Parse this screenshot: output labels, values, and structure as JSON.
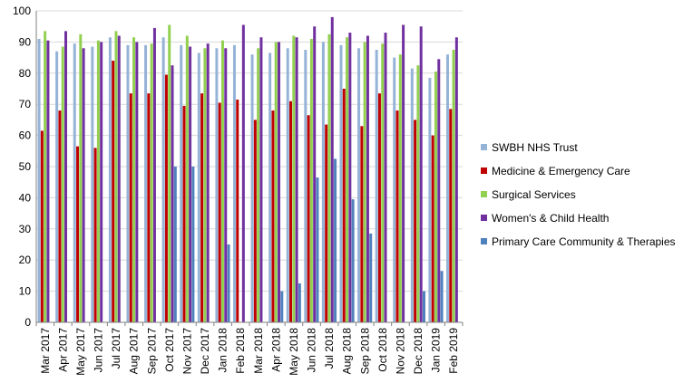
{
  "chart_data": {
    "type": "bar",
    "categories": [
      "Mar 2017",
      "Apr 2017",
      "May 2017",
      "Jun 2017",
      "Jul 2017",
      "Aug 2017",
      "Sep 2017",
      "Oct 2017",
      "Nov 2017",
      "Dec 2017",
      "Jan 2018",
      "Feb 2018",
      "Mar 2018",
      "Apr 2018",
      "May 2018",
      "Jun 2018",
      "Jul 2018",
      "Aug 2018",
      "Sep 2018",
      "Oct 2018",
      "Nov 2018",
      "Dec 2018",
      "Jan 2019",
      "Feb 2019"
    ],
    "ylim": [
      0,
      100
    ],
    "yticks": [
      0,
      10,
      20,
      30,
      40,
      50,
      60,
      70,
      80,
      90,
      100
    ],
    "grid": true,
    "legend_position": "right",
    "series": [
      {
        "name": "SWBH NHS Trust",
        "color": "#95b3d7",
        "values": [
          91,
          87,
          89.5,
          88.5,
          91.5,
          89,
          89,
          91.5,
          89,
          86.5,
          88,
          89,
          86,
          86.5,
          88,
          87.5,
          90,
          89,
          88,
          87.5,
          85,
          81.5,
          78.5,
          86
        ]
      },
      {
        "name": "Medicine & Emergency Care",
        "color": "#c00000",
        "values": [
          61.5,
          68,
          56.5,
          56,
          84,
          73.5,
          73.5,
          79.5,
          69.5,
          73.5,
          70.5,
          71.5,
          65,
          68,
          71,
          66.5,
          63.5,
          75,
          63,
          73.5,
          68,
          65,
          60,
          68.5
        ]
      },
      {
        "name": "Surgical Services",
        "color": "#92d050",
        "values": [
          93.5,
          88.5,
          92.5,
          90.5,
          93.5,
          91.5,
          89.5,
          95.5,
          92,
          88,
          90.5,
          null,
          88,
          90,
          92,
          91,
          92.5,
          91.5,
          90,
          89.5,
          86,
          82.5,
          80.5,
          87.5
        ]
      },
      {
        "name": "Women's & Child Health",
        "color": "#7030a0",
        "values": [
          90.5,
          93.5,
          88,
          90,
          92,
          90,
          94.5,
          82.5,
          88.5,
          89.5,
          88,
          95.5,
          91.5,
          90,
          91.5,
          95,
          98,
          93,
          92,
          93,
          95.5,
          95,
          84.5,
          91.5
        ]
      },
      {
        "name": "Primary Care Community & Therapies",
        "color": "#4f81bd",
        "values": [
          null,
          null,
          null,
          null,
          null,
          null,
          null,
          50,
          50,
          null,
          25,
          null,
          null,
          10,
          12.5,
          46.5,
          52.5,
          39.5,
          28.5,
          null,
          null,
          10,
          16.5,
          null
        ]
      }
    ]
  }
}
